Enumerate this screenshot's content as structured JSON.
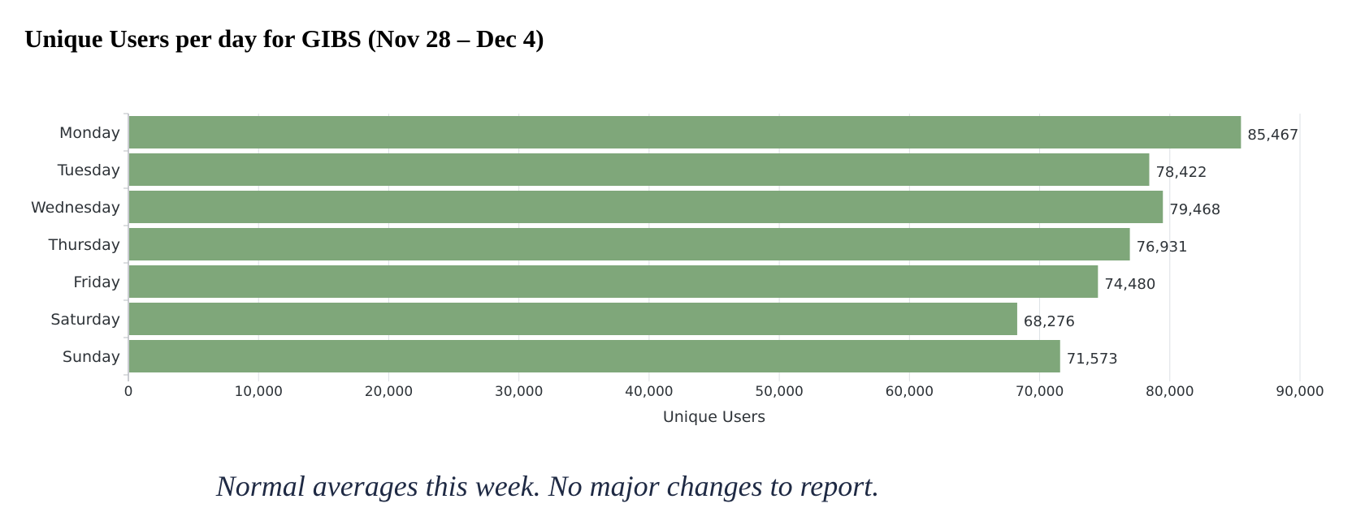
{
  "chart_data": {
    "type": "bar",
    "orientation": "horizontal",
    "title": "Unique Users per day for GIBS (Nov 28 – Dec 4)",
    "xlabel": "Unique Users",
    "ylabel": "",
    "categories": [
      "Monday",
      "Tuesday",
      "Wednesday",
      "Thursday",
      "Friday",
      "Saturday",
      "Sunday"
    ],
    "values": [
      85467,
      78422,
      79468,
      76931,
      74480,
      68276,
      71573
    ],
    "data_labels": [
      "85,467",
      "78,422",
      "79,468",
      "76,931",
      "74,480",
      "68,276",
      "71,573"
    ],
    "xlim": [
      0,
      90000
    ],
    "x_ticks": [
      0,
      10000,
      20000,
      30000,
      40000,
      50000,
      60000,
      70000,
      80000,
      90000
    ],
    "x_tick_labels": [
      "0",
      "10,000",
      "20,000",
      "30,000",
      "40,000",
      "50,000",
      "60,000",
      "70,000",
      "80,000",
      "90,000"
    ],
    "grid": "vertical",
    "bar_color": "#7fa77a"
  },
  "caption": "Normal averages this week.  No major changes to report."
}
